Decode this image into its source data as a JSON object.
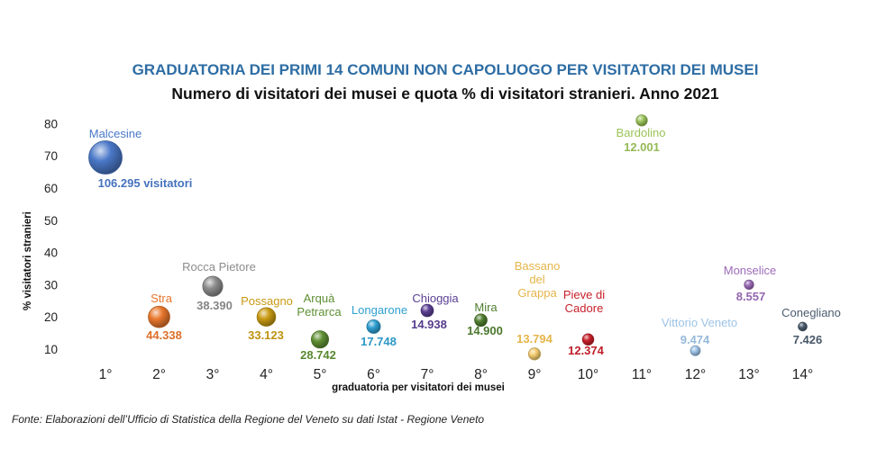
{
  "chart_data": {
    "type": "scatter",
    "title": "GRADUATORIA DEI PRIMI 14 COMUNI NON CAPOLUOGO PER VISITATORI DEI MUSEI",
    "subtitle": "Numero di visitatori dei musei e quota % di visitatori stranieri. Anno 2021",
    "xlabel": "graduatoria per visitatori dei musei",
    "ylabel": "% visitatori stranieri",
    "x_ticks": [
      "1°",
      "2°",
      "3°",
      "4°",
      "5°",
      "6°",
      "7°",
      "8°",
      "9°",
      "10°",
      "11°",
      "12°",
      "13°",
      "14°"
    ],
    "y_ticks": [
      "10",
      "20",
      "30",
      "40",
      "50",
      "60",
      "70",
      "80"
    ],
    "xlim": [
      0.1,
      14.9
    ],
    "ylim": [
      5,
      83
    ],
    "grid": false,
    "points": [
      {
        "rank": 1,
        "name": "Malcesine",
        "value_label": "106.295 visitatori",
        "visitors": 106295,
        "y": 69.5,
        "color": "#4A78C8"
      },
      {
        "rank": 2,
        "name": "Stra",
        "value_label": "44.338",
        "visitors": 44338,
        "y": 20,
        "color": "#E8762C"
      },
      {
        "rank": 3,
        "name": "Rocca Pietore",
        "value_label": "38.390",
        "visitors": 38390,
        "y": 29.5,
        "color": "#8C8C8C"
      },
      {
        "rank": 4,
        "name": "Possagno",
        "value_label": "33.123",
        "visitors": 33123,
        "y": 20,
        "color": "#C89A12"
      },
      {
        "rank": 5,
        "name": "Arquà\nPetrarca",
        "value_label": "28.742",
        "visitors": 28742,
        "y": 13,
        "color": "#5E8F32"
      },
      {
        "rank": 6,
        "name": "Longarone",
        "value_label": "17.748",
        "visitors": 17748,
        "y": 17,
        "color": "#2E9FD1"
      },
      {
        "rank": 7,
        "name": "Chioggia",
        "value_label": "14.938",
        "visitors": 14938,
        "y": 22,
        "color": "#5B3F93"
      },
      {
        "rank": 8,
        "name": "Mira",
        "value_label": "14.900",
        "visitors": 14900,
        "y": 19,
        "color": "#4F7E2F"
      },
      {
        "rank": 9,
        "name": "Bassano\ndel\nGrappa",
        "value_label": "13.794",
        "visitors": 13794,
        "y": 8.5,
        "color": "#F3CC6E"
      },
      {
        "rank": 10,
        "name": "Pieve di\nCadore",
        "value_label": "12.374",
        "visitors": 12374,
        "y": 13,
        "color": "#C8202A"
      },
      {
        "rank": 11,
        "name": "Bardolino",
        "value_label": "12.001",
        "visitors": 12001,
        "y": 81,
        "color": "#9CC45A"
      },
      {
        "rank": 12,
        "name": "Vittorio Veneto",
        "value_label": "9.474",
        "visitors": 9474,
        "y": 9.5,
        "color": "#9DC3E6"
      },
      {
        "rank": 13,
        "name": "Monselice",
        "value_label": "8.557",
        "visitors": 8557,
        "y": 30,
        "color": "#9B6BB8"
      },
      {
        "rank": 14,
        "name": "Conegliano",
        "value_label": "7.426",
        "visitors": 7426,
        "y": 17,
        "color": "#4B5C6E"
      }
    ]
  },
  "source": "Fonte: Elaborazioni dell’Ufficio di Statistica della Regione del Veneto su dati Istat - Regione Veneto"
}
